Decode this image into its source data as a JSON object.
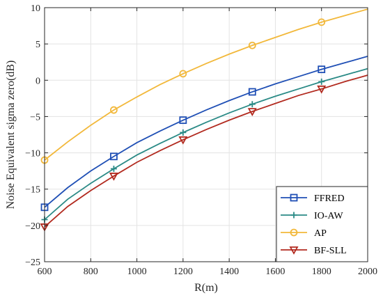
{
  "chart_data": {
    "type": "line",
    "xlabel": "R(m)",
    "ylabel": "Noise Equivalent sigma zero(dB)",
    "xlim": [
      600,
      2000
    ],
    "ylim": [
      -25,
      10
    ],
    "xticks": [
      600,
      800,
      1000,
      1200,
      1400,
      1600,
      1800,
      2000
    ],
    "yticks": [
      -25,
      -20,
      -15,
      -10,
      -5,
      0,
      5,
      10
    ],
    "grid": true,
    "legend_position": "lower-right",
    "x": [
      600,
      700,
      800,
      900,
      1000,
      1100,
      1200,
      1300,
      1400,
      1500,
      1600,
      1700,
      1800,
      1900,
      2000
    ],
    "marker_x": [
      600,
      900,
      1200,
      1500,
      1800
    ],
    "series": [
      {
        "name": "FFRED",
        "color": "#1f4fb5",
        "marker": "square",
        "values": [
          -17.5,
          -14.8,
          -12.5,
          -10.5,
          -8.6,
          -7.0,
          -5.5,
          -4.1,
          -2.8,
          -1.6,
          -0.5,
          0.5,
          1.5,
          2.4,
          3.3
        ]
      },
      {
        "name": "IO-AW",
        "color": "#2a8a86",
        "marker": "plus",
        "values": [
          -19.2,
          -16.4,
          -14.2,
          -12.2,
          -10.3,
          -8.7,
          -7.2,
          -5.8,
          -4.5,
          -3.3,
          -2.2,
          -1.2,
          -0.2,
          0.7,
          1.6
        ]
      },
      {
        "name": "AP",
        "color": "#f2b83a",
        "marker": "circle",
        "values": [
          -11.0,
          -8.5,
          -6.2,
          -4.1,
          -2.3,
          -0.6,
          0.9,
          2.3,
          3.6,
          4.8,
          5.9,
          7.0,
          8.0,
          8.9,
          9.8
        ]
      },
      {
        "name": "BF-SLL",
        "color": "#b22a1f",
        "marker": "triangle-down",
        "values": [
          -20.2,
          -17.4,
          -15.2,
          -13.2,
          -11.3,
          -9.7,
          -8.2,
          -6.8,
          -5.5,
          -4.3,
          -3.2,
          -2.1,
          -1.2,
          -0.2,
          0.7
        ]
      }
    ]
  }
}
